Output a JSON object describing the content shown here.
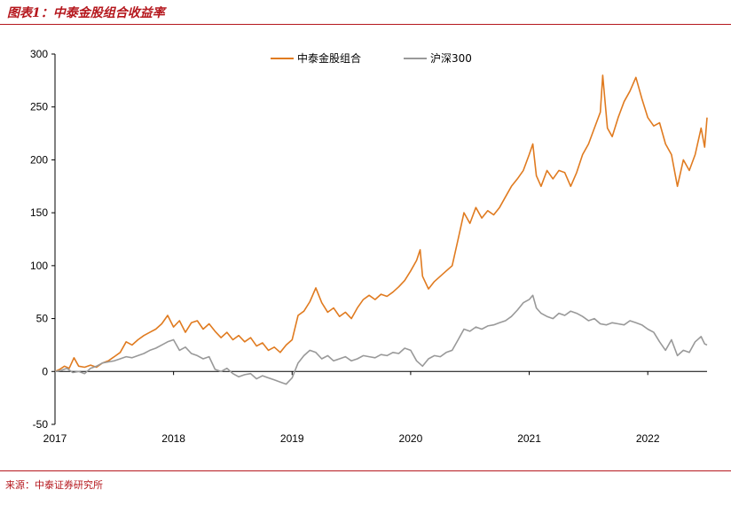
{
  "header": {
    "title": "图表1：中泰金股组合收益率"
  },
  "footer": {
    "source": "来源：中泰证券研究所"
  },
  "chart_data": {
    "type": "line",
    "ylim": [
      -50,
      300
    ],
    "y_ticks": [
      -50,
      0,
      50,
      100,
      150,
      200,
      250,
      300
    ],
    "xlim": [
      2017.0,
      2022.5
    ],
    "x_ticks": [
      {
        "value": 2017,
        "label": "2017"
      },
      {
        "value": 2018,
        "label": "2018"
      },
      {
        "value": 2019,
        "label": "2019"
      },
      {
        "value": 2020,
        "label": "2020"
      },
      {
        "value": 2021,
        "label": "2021"
      },
      {
        "value": 2022,
        "label": "2022"
      }
    ],
    "legend_position": "top-center",
    "grid": false,
    "series": [
      {
        "name": "中泰金股组合",
        "color": "#e07b20",
        "points": [
          [
            2017.0,
            0
          ],
          [
            2017.04,
            2
          ],
          [
            2017.08,
            5
          ],
          [
            2017.12,
            3
          ],
          [
            2017.16,
            13
          ],
          [
            2017.2,
            5
          ],
          [
            2017.25,
            4
          ],
          [
            2017.3,
            6
          ],
          [
            2017.35,
            4
          ],
          [
            2017.4,
            8
          ],
          [
            2017.45,
            10
          ],
          [
            2017.5,
            14
          ],
          [
            2017.55,
            18
          ],
          [
            2017.6,
            28
          ],
          [
            2017.65,
            25
          ],
          [
            2017.7,
            30
          ],
          [
            2017.75,
            34
          ],
          [
            2017.8,
            37
          ],
          [
            2017.85,
            40
          ],
          [
            2017.9,
            45
          ],
          [
            2017.95,
            53
          ],
          [
            2018.0,
            42
          ],
          [
            2018.05,
            48
          ],
          [
            2018.1,
            37
          ],
          [
            2018.15,
            46
          ],
          [
            2018.2,
            48
          ],
          [
            2018.25,
            40
          ],
          [
            2018.3,
            45
          ],
          [
            2018.35,
            38
          ],
          [
            2018.4,
            32
          ],
          [
            2018.45,
            37
          ],
          [
            2018.5,
            30
          ],
          [
            2018.55,
            34
          ],
          [
            2018.6,
            28
          ],
          [
            2018.65,
            32
          ],
          [
            2018.7,
            24
          ],
          [
            2018.75,
            27
          ],
          [
            2018.8,
            20
          ],
          [
            2018.85,
            23
          ],
          [
            2018.9,
            18
          ],
          [
            2018.95,
            25
          ],
          [
            2019.0,
            30
          ],
          [
            2019.05,
            53
          ],
          [
            2019.1,
            57
          ],
          [
            2019.15,
            66
          ],
          [
            2019.2,
            79
          ],
          [
            2019.25,
            65
          ],
          [
            2019.3,
            56
          ],
          [
            2019.35,
            60
          ],
          [
            2019.4,
            52
          ],
          [
            2019.45,
            56
          ],
          [
            2019.5,
            50
          ],
          [
            2019.55,
            60
          ],
          [
            2019.6,
            68
          ],
          [
            2019.65,
            72
          ],
          [
            2019.7,
            68
          ],
          [
            2019.75,
            73
          ],
          [
            2019.8,
            71
          ],
          [
            2019.85,
            75
          ],
          [
            2019.9,
            80
          ],
          [
            2019.95,
            86
          ],
          [
            2020.0,
            95
          ],
          [
            2020.05,
            105
          ],
          [
            2020.08,
            115
          ],
          [
            2020.1,
            90
          ],
          [
            2020.15,
            78
          ],
          [
            2020.2,
            85
          ],
          [
            2020.25,
            90
          ],
          [
            2020.3,
            95
          ],
          [
            2020.35,
            100
          ],
          [
            2020.4,
            125
          ],
          [
            2020.45,
            150
          ],
          [
            2020.5,
            140
          ],
          [
            2020.55,
            155
          ],
          [
            2020.6,
            145
          ],
          [
            2020.65,
            152
          ],
          [
            2020.7,
            148
          ],
          [
            2020.75,
            155
          ],
          [
            2020.8,
            165
          ],
          [
            2020.85,
            175
          ],
          [
            2020.9,
            182
          ],
          [
            2020.95,
            190
          ],
          [
            2021.0,
            205
          ],
          [
            2021.03,
            215
          ],
          [
            2021.06,
            185
          ],
          [
            2021.1,
            175
          ],
          [
            2021.15,
            190
          ],
          [
            2021.2,
            182
          ],
          [
            2021.25,
            190
          ],
          [
            2021.3,
            188
          ],
          [
            2021.35,
            175
          ],
          [
            2021.4,
            188
          ],
          [
            2021.45,
            205
          ],
          [
            2021.5,
            215
          ],
          [
            2021.55,
            230
          ],
          [
            2021.6,
            245
          ],
          [
            2021.62,
            280
          ],
          [
            2021.66,
            230
          ],
          [
            2021.7,
            222
          ],
          [
            2021.75,
            240
          ],
          [
            2021.8,
            255
          ],
          [
            2021.85,
            265
          ],
          [
            2021.9,
            278
          ],
          [
            2021.95,
            258
          ],
          [
            2022.0,
            240
          ],
          [
            2022.05,
            232
          ],
          [
            2022.1,
            235
          ],
          [
            2022.15,
            215
          ],
          [
            2022.2,
            205
          ],
          [
            2022.25,
            175
          ],
          [
            2022.3,
            200
          ],
          [
            2022.35,
            190
          ],
          [
            2022.4,
            205
          ],
          [
            2022.45,
            230
          ],
          [
            2022.48,
            212
          ],
          [
            2022.5,
            240
          ]
        ]
      },
      {
        "name": "沪深300",
        "color": "#999999",
        "points": [
          [
            2017.0,
            0
          ],
          [
            2017.05,
            1
          ],
          [
            2017.1,
            3
          ],
          [
            2017.15,
            -1
          ],
          [
            2017.2,
            0
          ],
          [
            2017.25,
            -2
          ],
          [
            2017.3,
            3
          ],
          [
            2017.35,
            5
          ],
          [
            2017.4,
            8
          ],
          [
            2017.45,
            9
          ],
          [
            2017.5,
            10
          ],
          [
            2017.55,
            12
          ],
          [
            2017.6,
            14
          ],
          [
            2017.65,
            13
          ],
          [
            2017.7,
            15
          ],
          [
            2017.75,
            17
          ],
          [
            2017.8,
            20
          ],
          [
            2017.85,
            22
          ],
          [
            2017.9,
            25
          ],
          [
            2017.95,
            28
          ],
          [
            2018.0,
            30
          ],
          [
            2018.05,
            20
          ],
          [
            2018.1,
            23
          ],
          [
            2018.15,
            17
          ],
          [
            2018.2,
            15
          ],
          [
            2018.25,
            12
          ],
          [
            2018.3,
            14
          ],
          [
            2018.35,
            2
          ],
          [
            2018.4,
            0
          ],
          [
            2018.45,
            3
          ],
          [
            2018.5,
            -2
          ],
          [
            2018.55,
            -5
          ],
          [
            2018.6,
            -3
          ],
          [
            2018.65,
            -2
          ],
          [
            2018.7,
            -7
          ],
          [
            2018.75,
            -4
          ],
          [
            2018.8,
            -6
          ],
          [
            2018.85,
            -8
          ],
          [
            2018.9,
            -10
          ],
          [
            2018.95,
            -12
          ],
          [
            2019.0,
            -6
          ],
          [
            2019.05,
            8
          ],
          [
            2019.1,
            15
          ],
          [
            2019.15,
            20
          ],
          [
            2019.2,
            18
          ],
          [
            2019.25,
            12
          ],
          [
            2019.3,
            15
          ],
          [
            2019.35,
            10
          ],
          [
            2019.4,
            12
          ],
          [
            2019.45,
            14
          ],
          [
            2019.5,
            10
          ],
          [
            2019.55,
            12
          ],
          [
            2019.6,
            15
          ],
          [
            2019.65,
            14
          ],
          [
            2019.7,
            13
          ],
          [
            2019.75,
            16
          ],
          [
            2019.8,
            15
          ],
          [
            2019.85,
            18
          ],
          [
            2019.9,
            17
          ],
          [
            2019.95,
            22
          ],
          [
            2020.0,
            20
          ],
          [
            2020.05,
            10
          ],
          [
            2020.1,
            5
          ],
          [
            2020.15,
            12
          ],
          [
            2020.2,
            15
          ],
          [
            2020.25,
            14
          ],
          [
            2020.3,
            18
          ],
          [
            2020.35,
            20
          ],
          [
            2020.4,
            30
          ],
          [
            2020.45,
            40
          ],
          [
            2020.5,
            38
          ],
          [
            2020.55,
            42
          ],
          [
            2020.6,
            40
          ],
          [
            2020.65,
            43
          ],
          [
            2020.7,
            44
          ],
          [
            2020.75,
            46
          ],
          [
            2020.8,
            48
          ],
          [
            2020.85,
            52
          ],
          [
            2020.9,
            58
          ],
          [
            2020.95,
            65
          ],
          [
            2021.0,
            68
          ],
          [
            2021.03,
            72
          ],
          [
            2021.06,
            60
          ],
          [
            2021.1,
            55
          ],
          [
            2021.15,
            52
          ],
          [
            2021.2,
            50
          ],
          [
            2021.25,
            55
          ],
          [
            2021.3,
            53
          ],
          [
            2021.35,
            57
          ],
          [
            2021.4,
            55
          ],
          [
            2021.45,
            52
          ],
          [
            2021.5,
            48
          ],
          [
            2021.55,
            50
          ],
          [
            2021.6,
            45
          ],
          [
            2021.65,
            44
          ],
          [
            2021.7,
            46
          ],
          [
            2021.75,
            45
          ],
          [
            2021.8,
            44
          ],
          [
            2021.85,
            48
          ],
          [
            2021.9,
            46
          ],
          [
            2021.95,
            44
          ],
          [
            2022.0,
            40
          ],
          [
            2022.05,
            37
          ],
          [
            2022.1,
            28
          ],
          [
            2022.15,
            20
          ],
          [
            2022.2,
            30
          ],
          [
            2022.25,
            15
          ],
          [
            2022.3,
            20
          ],
          [
            2022.35,
            18
          ],
          [
            2022.4,
            28
          ],
          [
            2022.45,
            33
          ],
          [
            2022.48,
            26
          ],
          [
            2022.5,
            25
          ]
        ]
      }
    ]
  }
}
